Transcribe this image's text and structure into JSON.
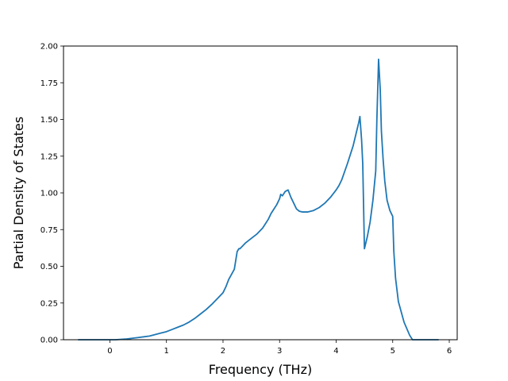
{
  "chart_data": {
    "type": "line",
    "title": "",
    "xlabel": "Frequency (THz)",
    "ylabel": "Partial Density of States",
    "xlim": [
      -0.82,
      6.14
    ],
    "ylim": [
      0,
      2.0
    ],
    "grid": false,
    "legend": "none",
    "x_ticks": [
      "0",
      "1",
      "2",
      "3",
      "4",
      "5",
      "6"
    ],
    "x_tick_values": [
      0,
      1,
      2,
      3,
      4,
      5,
      6
    ],
    "y_ticks": [
      "0.00",
      "0.25",
      "0.50",
      "0.75",
      "1.00",
      "1.25",
      "1.50",
      "1.75",
      "2.00"
    ],
    "y_tick_values": [
      0,
      0.25,
      0.5,
      0.75,
      1.0,
      1.25,
      1.5,
      1.75,
      2.0
    ],
    "line_color": "#1f77b4",
    "series": [
      {
        "x": [
          -0.55,
          -0.2,
          0.1,
          0.3,
          0.4,
          0.5,
          0.6,
          0.7,
          0.8,
          0.9,
          1.0,
          1.1,
          1.2,
          1.3,
          1.4,
          1.5,
          1.6,
          1.7,
          1.8,
          1.9,
          2.0,
          2.05,
          2.1,
          2.2,
          2.25,
          2.28,
          2.3,
          2.35,
          2.4,
          2.5,
          2.6,
          2.7,
          2.75,
          2.8,
          2.85,
          2.9,
          2.95,
          3.0,
          3.02,
          3.05,
          3.1,
          3.15,
          3.2,
          3.25,
          3.3,
          3.35,
          3.4,
          3.5,
          3.6,
          3.7,
          3.8,
          3.9,
          4.0,
          4.05,
          4.1,
          4.2,
          4.3,
          4.35,
          4.4,
          4.42,
          4.45,
          4.47,
          4.5,
          4.55,
          4.6,
          4.65,
          4.7,
          4.72,
          4.75,
          4.78,
          4.8,
          4.83,
          4.86,
          4.9,
          4.95,
          5.0,
          5.02,
          5.05,
          5.1,
          5.2,
          5.3,
          5.35,
          5.8
        ],
        "y": [
          0.0,
          0.0,
          0.0,
          0.005,
          0.01,
          0.015,
          0.02,
          0.025,
          0.035,
          0.045,
          0.055,
          0.07,
          0.085,
          0.1,
          0.12,
          0.145,
          0.175,
          0.205,
          0.24,
          0.28,
          0.32,
          0.36,
          0.41,
          0.48,
          0.6,
          0.62,
          0.62,
          0.64,
          0.66,
          0.69,
          0.72,
          0.76,
          0.79,
          0.82,
          0.86,
          0.89,
          0.92,
          0.96,
          0.99,
          0.98,
          1.01,
          1.02,
          0.97,
          0.93,
          0.89,
          0.875,
          0.87,
          0.87,
          0.88,
          0.9,
          0.93,
          0.97,
          1.02,
          1.05,
          1.09,
          1.2,
          1.32,
          1.4,
          1.48,
          1.52,
          1.36,
          1.2,
          0.62,
          0.7,
          0.8,
          0.95,
          1.15,
          1.5,
          1.91,
          1.7,
          1.42,
          1.23,
          1.08,
          0.95,
          0.88,
          0.84,
          0.6,
          0.42,
          0.26,
          0.12,
          0.03,
          0.0,
          0.0
        ]
      }
    ]
  }
}
